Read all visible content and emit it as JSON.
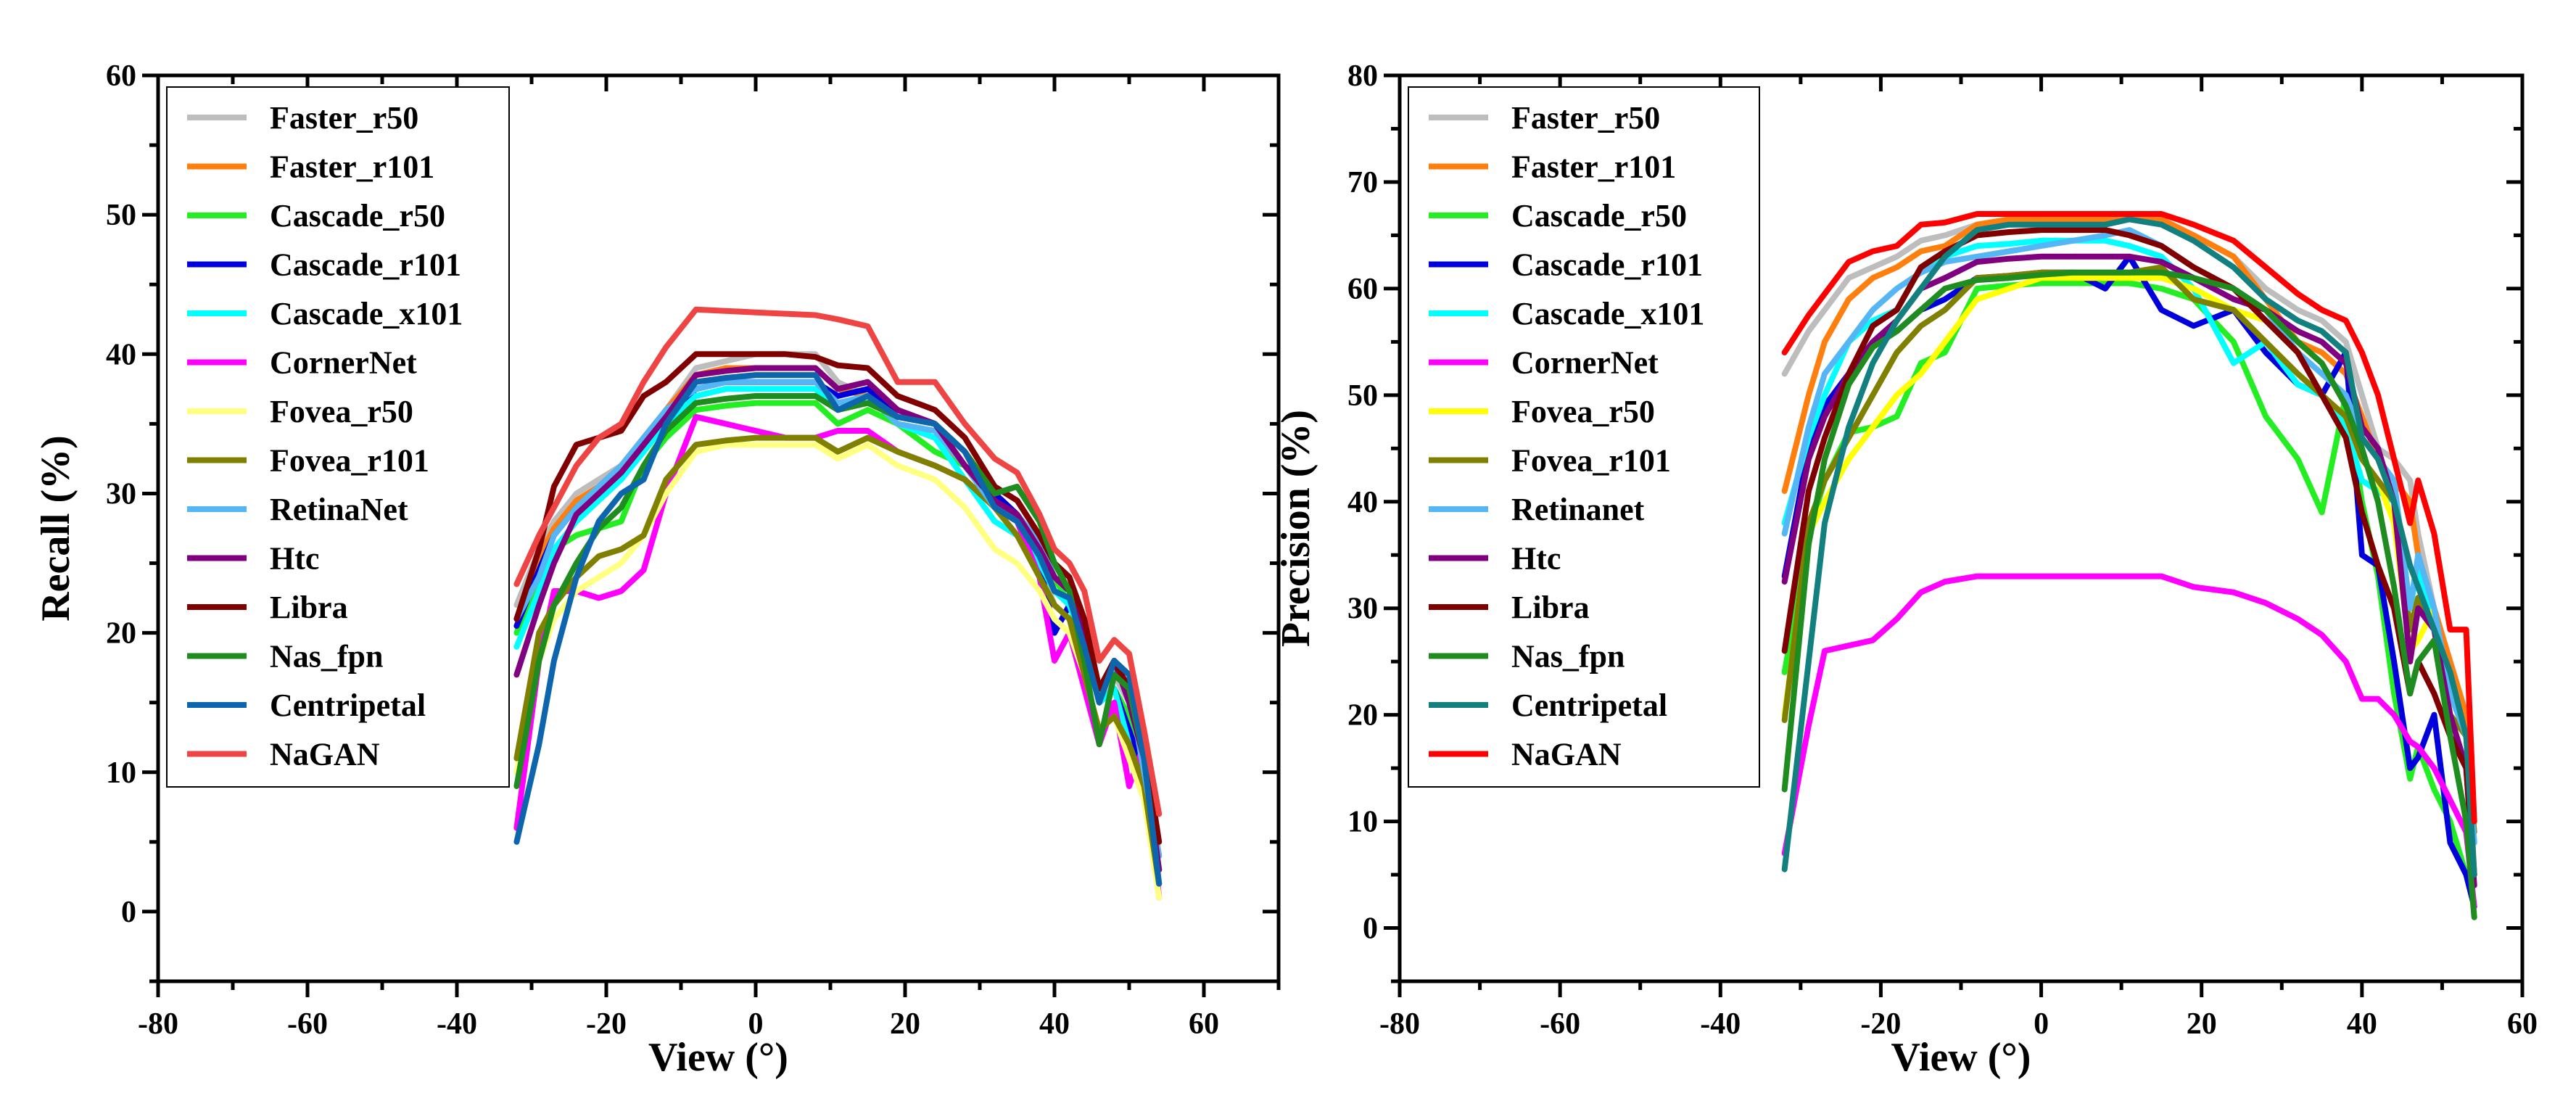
{
  "chart_data": [
    {
      "type": "line",
      "xlabel": "View (°)",
      "ylabel": "Recall (%)",
      "xlim": [
        -80,
        70
      ],
      "ylim": [
        -5,
        60
      ],
      "xticks": [
        -80,
        -60,
        -40,
        -20,
        0,
        20,
        40,
        60
      ],
      "yticks": [
        0,
        10,
        20,
        30,
        40,
        50,
        60
      ],
      "legend_position": "top-left",
      "x": [
        -32,
        -29,
        -27,
        -24,
        -21,
        -18,
        -15,
        -12,
        -8,
        -4,
        0,
        4,
        8,
        11,
        15,
        19,
        24,
        28,
        32,
        35,
        38,
        40,
        42,
        44,
        46,
        48,
        50,
        52,
        54
      ],
      "series": [
        {
          "name": "Faster_r50",
          "color": "#bdbdbd",
          "values": [
            22,
            26,
            28,
            30,
            31,
            32,
            34,
            36,
            39,
            39.5,
            40,
            40,
            40,
            38,
            37,
            35,
            34,
            32,
            29,
            28,
            25,
            22,
            21,
            19,
            15,
            17,
            15,
            10,
            4
          ]
        },
        {
          "name": "Faster_r101",
          "color": "#ff7f0e",
          "values": [
            21,
            25.5,
            27.5,
            29.5,
            30.5,
            32,
            34,
            36,
            38.5,
            39,
            39,
            39,
            39,
            37.5,
            37,
            35,
            34,
            32,
            30,
            28.5,
            26,
            23,
            22,
            20,
            16,
            17.5,
            16,
            11,
            4
          ]
        },
        {
          "name": "Cascade_r50",
          "color": "#22ee22",
          "values": [
            20,
            24,
            26,
            27,
            27.5,
            28,
            32,
            34,
            36,
            36.3,
            36.5,
            36.5,
            36.5,
            35,
            36,
            35,
            33,
            32,
            30,
            28,
            26.5,
            24,
            22,
            20,
            15,
            16,
            14,
            10,
            3
          ]
        },
        {
          "name": "Cascade_r101",
          "color": "#0000dd",
          "values": [
            20.5,
            24.5,
            27,
            29,
            30,
            31.5,
            33.5,
            35.5,
            37.5,
            38,
            38,
            38,
            38,
            37,
            37.5,
            36,
            35,
            32,
            30,
            28.5,
            25,
            20,
            22,
            19,
            15,
            16,
            13,
            10,
            3
          ]
        },
        {
          "name": "Cascade_x101",
          "color": "#00ffff",
          "values": [
            19,
            23,
            26,
            28,
            29.5,
            31,
            33,
            35,
            37,
            37.5,
            37.5,
            37.5,
            37.5,
            36,
            37,
            35,
            34,
            31,
            28,
            27,
            25,
            23,
            22,
            19,
            15,
            16,
            12,
            9,
            3
          ]
        },
        {
          "name": "CornerNet",
          "color": "#ff00ff",
          "values": [
            6,
            18,
            23,
            23,
            22.5,
            23,
            24.5,
            30,
            35.5,
            35,
            34.5,
            34,
            34,
            34.5,
            34.5,
            33,
            32,
            31,
            29,
            28,
            24,
            18,
            20,
            16,
            12,
            15,
            9,
            12,
            1
          ]
        },
        {
          "name": "Fovea_r50",
          "color": "#ffff80",
          "values": [
            10,
            18,
            21,
            23,
            24,
            25,
            27,
            30,
            33,
            33.5,
            33.5,
            33.5,
            33.5,
            32.5,
            33.5,
            32,
            31,
            29,
            26,
            25,
            23,
            21,
            20,
            17,
            13,
            14,
            11,
            8,
            1
          ]
        },
        {
          "name": "Fovea_r101",
          "color": "#808000",
          "values": [
            11,
            20,
            22,
            24,
            25.5,
            26,
            27,
            31,
            33.5,
            33.8,
            34,
            34,
            34,
            33,
            34,
            33,
            32,
            31,
            29,
            27,
            24,
            22,
            21,
            17,
            13,
            14,
            12,
            9,
            2
          ]
        },
        {
          "name": "RetinaNet",
          "color": "#55b6f6",
          "values": [
            21,
            24,
            27,
            29,
            30.5,
            32,
            34,
            36,
            37.5,
            38,
            38,
            38,
            38,
            36.5,
            37,
            35,
            34.5,
            32,
            29,
            28.5,
            26.5,
            24,
            23,
            20,
            16,
            17.5,
            16,
            10,
            4
          ]
        },
        {
          "name": "Htc",
          "color": "#800080",
          "values": [
            17,
            22,
            25,
            28.5,
            30,
            31.5,
            33.5,
            35.5,
            38.5,
            38.8,
            39,
            39,
            39,
            37.5,
            38,
            36,
            35,
            32,
            29.5,
            28.5,
            26,
            24,
            23,
            20,
            16,
            18,
            15,
            11,
            3
          ]
        },
        {
          "name": "Libra",
          "color": "#800000",
          "values": [
            21,
            26,
            30.5,
            33.5,
            34,
            34.5,
            37,
            38,
            40,
            40,
            40,
            40,
            39.8,
            39.2,
            39,
            37,
            36,
            34,
            30.5,
            29.5,
            27,
            25,
            24,
            21,
            16,
            18,
            16,
            12,
            5
          ]
        },
        {
          "name": "Nas_fpn",
          "color": "#1e8c1e",
          "values": [
            9,
            18,
            22,
            25,
            27.5,
            29,
            32,
            34.5,
            36.5,
            36.8,
            37,
            37,
            37,
            36,
            36.5,
            35.5,
            35,
            33,
            30,
            30.5,
            28,
            25,
            23,
            18,
            12,
            17,
            16,
            11,
            2
          ]
        },
        {
          "name": "Centripetal",
          "color": "#0d66ad",
          "values": [
            5,
            12,
            18,
            24,
            28,
            30,
            31,
            35,
            38,
            38.3,
            38.5,
            38.5,
            38.5,
            36,
            37,
            35.5,
            35,
            33,
            29,
            28,
            25.5,
            23,
            22.5,
            19,
            15,
            18,
            17,
            11,
            2
          ]
        },
        {
          "name": "NaGAN",
          "color": "#ee4444",
          "values": [
            23.5,
            27,
            29,
            32,
            34,
            35,
            38,
            40.5,
            43.2,
            43.1,
            43,
            42.9,
            42.8,
            42.5,
            42,
            38,
            38,
            35,
            32.5,
            31.5,
            28.5,
            26,
            25,
            23,
            18,
            19.5,
            18.5,
            13,
            7
          ]
        }
      ]
    },
    {
      "type": "line",
      "xlabel": "View (°)",
      "ylabel": "Precision (%)",
      "xlim": [
        -80,
        60
      ],
      "ylim": [
        -5,
        80
      ],
      "xticks": [
        -80,
        -60,
        -40,
        -20,
        0,
        20,
        40,
        60
      ],
      "yticks": [
        0,
        10,
        20,
        30,
        40,
        50,
        60,
        70,
        80
      ],
      "legend_position": "top-left",
      "x": [
        -32,
        -29,
        -27,
        -24,
        -21,
        -18,
        -15,
        -12,
        -8,
        -4,
        0,
        4,
        8,
        11,
        15,
        19,
        24,
        28,
        32,
        35,
        38,
        40,
        42,
        44,
        46,
        47,
        49,
        51,
        53,
        54
      ],
      "series": [
        {
          "name": "Faster_r50",
          "color": "#bdbdbd",
          "values": [
            52,
            56,
            58,
            61,
            62,
            63,
            64.5,
            65,
            66,
            66.2,
            66.5,
            66.5,
            66.5,
            66.5,
            66.5,
            65,
            63,
            60,
            58,
            57,
            55,
            50,
            45,
            44,
            42,
            37,
            30,
            25,
            20,
            8
          ]
        },
        {
          "name": "Faster_r101",
          "color": "#ff7f0e",
          "values": [
            41,
            50,
            55,
            59,
            61,
            62,
            63.5,
            64,
            66,
            66.5,
            66.5,
            66.5,
            66.5,
            66.5,
            66.5,
            65,
            63,
            59,
            55,
            54,
            52,
            48,
            44,
            42,
            40,
            35,
            30,
            25,
            20,
            5
          ]
        },
        {
          "name": "Cascade_r50",
          "color": "#22ee22",
          "values": [
            24,
            37,
            42,
            46.5,
            47,
            48,
            53,
            54,
            60,
            60.3,
            60.5,
            60.5,
            60.5,
            60.5,
            60,
            59,
            55,
            48,
            44,
            39,
            50,
            40,
            33,
            22,
            14,
            17,
            13,
            10,
            5,
            2
          ]
        },
        {
          "name": "Cascade_r101",
          "color": "#0000dd",
          "values": [
            33,
            45,
            49,
            52,
            55,
            56,
            58,
            59,
            61,
            61.2,
            61.5,
            61.5,
            60,
            63,
            58,
            56.5,
            58,
            54,
            51,
            50,
            54,
            35,
            34,
            25,
            15,
            16,
            20,
            8,
            5,
            2
          ]
        },
        {
          "name": "Cascade_x101",
          "color": "#00ffff",
          "values": [
            38,
            46,
            50,
            55,
            57,
            58,
            62,
            63,
            64,
            64.2,
            64.5,
            64.5,
            64.5,
            64,
            63,
            60,
            53,
            55,
            51,
            50,
            47,
            42,
            41,
            40,
            30,
            34,
            28,
            22,
            18,
            10
          ]
        },
        {
          "name": "CornerNet",
          "color": "#ff00ff",
          "values": [
            7,
            19,
            26,
            26.5,
            27,
            29,
            31.5,
            32.5,
            33,
            33,
            33,
            33,
            33,
            33,
            33,
            32,
            31.5,
            30.5,
            29,
            27.5,
            25,
            21.5,
            21.5,
            20,
            17.5,
            17,
            15,
            12,
            9,
            2
          ]
        },
        {
          "name": "Fovea_r50",
          "color": "#ffff00",
          "values": [
            20,
            37,
            40,
            44,
            47,
            50,
            52,
            55,
            59,
            60,
            61,
            61,
            61,
            61,
            61,
            60,
            58,
            57,
            54,
            50,
            48,
            44,
            42,
            38,
            26,
            27,
            30,
            20,
            18,
            10
          ]
        },
        {
          "name": "Fovea_r101",
          "color": "#808000",
          "values": [
            19.5,
            38,
            42,
            46,
            50,
            54,
            56.5,
            58,
            61,
            61.2,
            61.5,
            61.5,
            61.5,
            61.5,
            62,
            59,
            58,
            55,
            52,
            50,
            48,
            44,
            42,
            40,
            28,
            31,
            28,
            20,
            18,
            9
          ]
        },
        {
          "name": "Retinanet",
          "color": "#55b6f6",
          "values": [
            37,
            47,
            52,
            55,
            58,
            60,
            61.5,
            62.5,
            63,
            63.5,
            64,
            64.5,
            65,
            65.5,
            64,
            62,
            60,
            58,
            54,
            52,
            50,
            46,
            44,
            42,
            30,
            35,
            30,
            22,
            18,
            8
          ]
        },
        {
          "name": "Htc",
          "color": "#800080",
          "values": [
            32.5,
            44,
            48,
            52,
            55,
            57,
            60,
            61,
            62.5,
            62.8,
            63,
            63,
            63,
            63,
            62.5,
            61,
            59,
            58,
            56,
            55,
            53,
            47,
            45,
            40,
            25,
            30,
            28,
            20,
            15,
            4
          ]
        },
        {
          "name": "Libra",
          "color": "#800000",
          "values": [
            26,
            41,
            46,
            52,
            56.5,
            58,
            62,
            63.5,
            65,
            65.3,
            65.5,
            65.5,
            65.5,
            65,
            64,
            62,
            60,
            57,
            54,
            50,
            46,
            39,
            34,
            30,
            22,
            25,
            22,
            18,
            15,
            5
          ]
        },
        {
          "name": "Nas_fpn",
          "color": "#1e8c1e",
          "values": [
            13,
            36,
            44,
            51,
            54.5,
            56,
            58,
            60,
            60.8,
            61,
            61.3,
            61.5,
            61.5,
            61.5,
            61.5,
            61,
            60,
            58,
            55,
            53,
            49,
            45,
            40,
            32,
            22,
            25,
            27,
            18,
            10,
            1
          ]
        },
        {
          "name": "Centripetal",
          "color": "#138080",
          "values": [
            5.5,
            25,
            38,
            47,
            53,
            57,
            60,
            63,
            65.5,
            66,
            66,
            66,
            66,
            66.5,
            66,
            64.5,
            62,
            59,
            57,
            56,
            54,
            46,
            44,
            40,
            34,
            32,
            28,
            24,
            18,
            5
          ]
        },
        {
          "name": "NaGAN",
          "color": "#ff0000",
          "values": [
            54,
            57.5,
            59.5,
            62.5,
            63.5,
            64,
            66,
            66.2,
            67,
            67,
            67,
            67,
            67,
            67,
            67,
            66,
            64.5,
            62,
            59.5,
            58,
            57,
            54,
            50,
            44,
            38,
            42,
            37,
            28,
            28,
            10
          ]
        }
      ]
    }
  ]
}
